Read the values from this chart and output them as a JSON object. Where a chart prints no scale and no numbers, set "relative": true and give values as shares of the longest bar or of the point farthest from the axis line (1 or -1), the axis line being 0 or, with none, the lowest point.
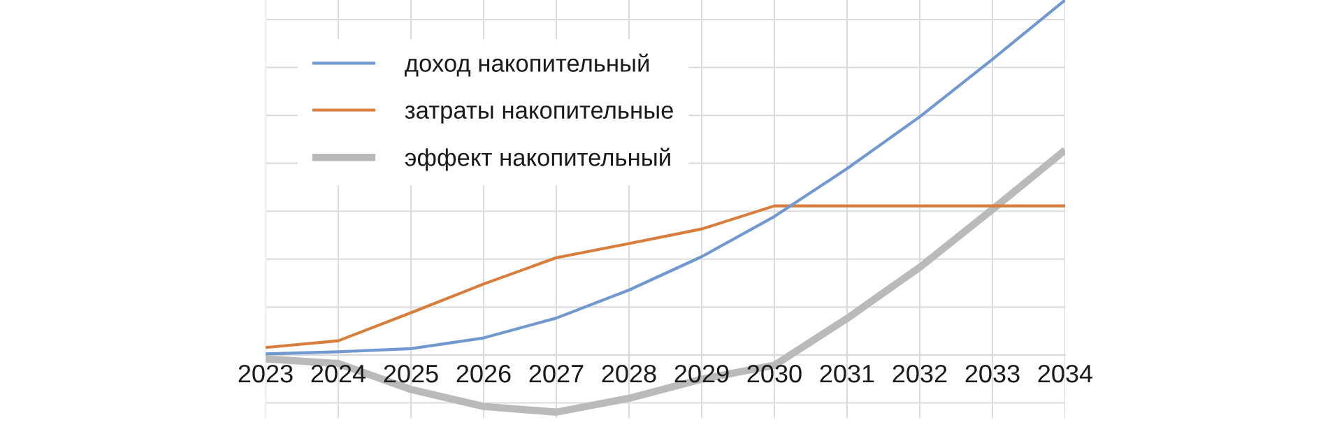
{
  "chart_data": {
    "type": "line",
    "relative": true,
    "categories": [
      "2023",
      "2024",
      "2025",
      "2026",
      "2027",
      "2028",
      "2029",
      "2030",
      "2031",
      "2032",
      "2033",
      "2034"
    ],
    "series": [
      {
        "name": "доход накопительный",
        "color": "#7199d0",
        "values": [
          0.003,
          0.009,
          0.018,
          0.048,
          0.104,
          0.183,
          0.277,
          0.39,
          0.525,
          0.671,
          0.833,
          1.0
        ]
      },
      {
        "name": "затраты накопительные",
        "color": "#d87d3c",
        "values": [
          0.021,
          0.04,
          0.119,
          0.2,
          0.274,
          0.314,
          0.355,
          0.42,
          0.42,
          0.42,
          0.42,
          0.42
        ]
      },
      {
        "name": "эффект накопительный",
        "color": "#bababa",
        "values": [
          -0.011,
          -0.024,
          -0.097,
          -0.145,
          -0.161,
          -0.122,
          -0.068,
          -0.029,
          0.103,
          0.247,
          0.41,
          0.577
        ]
      }
    ],
    "grid": true,
    "legend": "top left",
    "marker": "none",
    "line_style": "solid"
  }
}
